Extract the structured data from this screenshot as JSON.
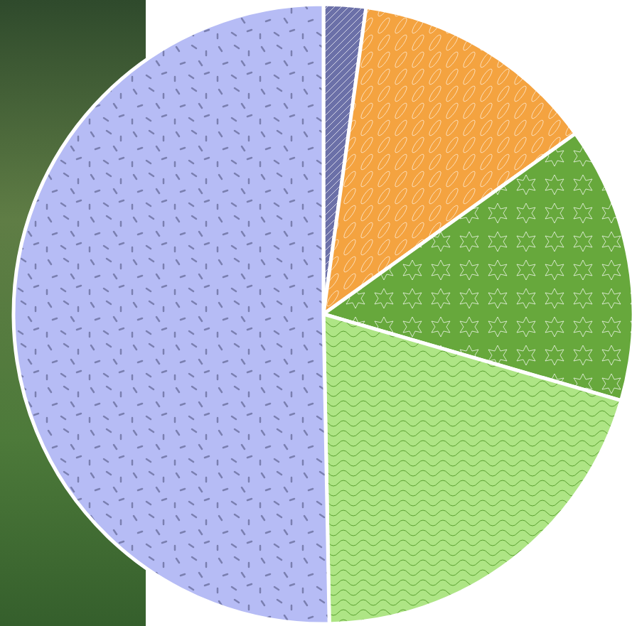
{
  "chart_data": {
    "type": "pie",
    "values": [
      2.2,
      12.9,
      14.4,
      20.2,
      50.3
    ],
    "colors": [
      "#6b70a8",
      "#f4a340",
      "#67a83c",
      "#aee585",
      "#b6bcf5"
    ]
  }
}
